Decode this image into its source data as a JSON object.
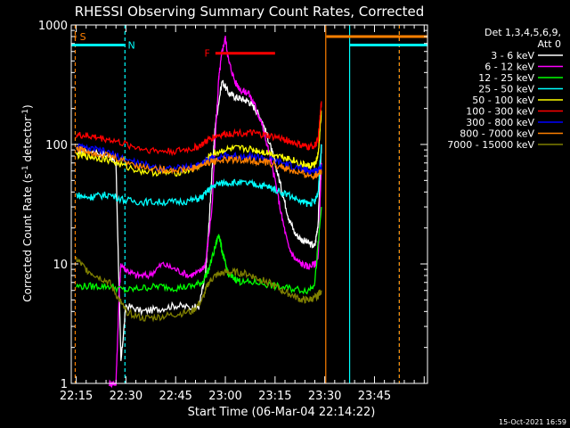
{
  "chart_data": {
    "type": "line",
    "title": "RHESSI Observing Summary Count Rates, Corrected",
    "xlabel": "Start Time (06-Mar-04 22:14:22)",
    "ylabel": "Corrected Count Rate (s",
    "ylabel_sup1": "-1",
    "ylabel_mid": " detector",
    "ylabel_sup2": "-1",
    "ylabel_end": ")",
    "yscale": "log",
    "ylim": [
      1,
      1000
    ],
    "xlim_minutes": [
      -1.5,
      106
    ],
    "x_ticks": [
      {
        "m": 0,
        "label": "22:15"
      },
      {
        "m": 15,
        "label": "22:30"
      },
      {
        "m": 30,
        "label": "22:45"
      },
      {
        "m": 45,
        "label": "23:00"
      },
      {
        "m": 60,
        "label": "23:15"
      },
      {
        "m": 75,
        "label": "23:30"
      },
      {
        "m": 90,
        "label": "23:45"
      }
    ],
    "y_ticks": [
      {
        "v": 1,
        "label": "1"
      },
      {
        "v": 10,
        "label": "10"
      },
      {
        "v": 100,
        "label": "100"
      },
      {
        "v": 1000,
        "label": "1000"
      }
    ],
    "legend_header": [
      "Det 1,3,4,5,6,9,",
      "Att 0"
    ],
    "legend_placement": "outside-right",
    "timestamp": "15-Oct-2021 16:59",
    "series": [
      {
        "name": "3 - 6 keV",
        "color": "#ffffff",
        "x": [
          0,
          5,
          10,
          12,
          13.5,
          15,
          20,
          25,
          30,
          35,
          37,
          39,
          40,
          41,
          42,
          44,
          46,
          48,
          50,
          52,
          54,
          56,
          58,
          60,
          62,
          64,
          66,
          68,
          70,
          72,
          73,
          74
        ],
        "y": [
          90,
          88,
          80,
          70,
          1.5,
          4.5,
          4,
          4.2,
          4.5,
          4.3,
          4.4,
          8,
          20,
          60,
          150,
          340,
          270,
          250,
          240,
          230,
          200,
          160,
          110,
          70,
          42,
          25,
          18,
          16,
          15,
          14,
          22,
          100
        ]
      },
      {
        "name": "6 - 12 keV",
        "color": "#ff00ff",
        "x": [
          10,
          12,
          13,
          13.5,
          15,
          18,
          22,
          26,
          30,
          34,
          37,
          39,
          41,
          42,
          43,
          44,
          45,
          46,
          48,
          50,
          52,
          54,
          56,
          58,
          60,
          62,
          64,
          66,
          68,
          70,
          72,
          73,
          74
        ],
        "y": [
          1,
          1,
          6,
          10,
          9,
          8,
          8,
          10,
          9,
          8,
          8.5,
          10,
          30,
          120,
          350,
          600,
          780,
          500,
          330,
          280,
          270,
          210,
          150,
          90,
          50,
          25,
          14,
          11,
          10,
          9.5,
          10,
          11,
          70
        ]
      },
      {
        "name": "12 - 25 keV",
        "color": "#00ff00",
        "x": [
          0,
          5,
          10,
          15,
          20,
          25,
          30,
          35,
          38,
          40,
          42,
          43,
          44,
          45,
          46,
          48,
          50,
          55,
          60,
          65,
          70,
          72,
          74
        ],
        "y": [
          6.5,
          6.5,
          6.5,
          6,
          6.3,
          6.5,
          6.3,
          6.5,
          7,
          9,
          14,
          18,
          13,
          10,
          8,
          7.5,
          7,
          7,
          6.5,
          6.2,
          6,
          7,
          30
        ]
      },
      {
        "name": "25 - 50 keV",
        "color": "#00ffff",
        "x": [
          0,
          3,
          6,
          10,
          15,
          20,
          25,
          30,
          35,
          38,
          40,
          42,
          45,
          48,
          52,
          55,
          58,
          60,
          64,
          68,
          70,
          72,
          73,
          74
        ],
        "y": [
          38,
          36,
          37,
          38,
          34,
          33,
          33,
          33,
          34,
          36,
          42,
          46,
          48,
          48,
          47,
          46,
          44,
          42,
          38,
          33,
          32,
          33,
          40,
          100
        ]
      },
      {
        "name": "50 - 100 keV",
        "color": "#ffff00",
        "x": [
          0,
          3,
          6,
          10,
          15,
          20,
          25,
          30,
          35,
          38,
          40,
          42,
          45,
          48,
          52,
          55,
          58,
          62,
          65,
          68,
          70,
          72,
          73,
          74
        ],
        "y": [
          82,
          80,
          78,
          74,
          65,
          60,
          58,
          58,
          62,
          68,
          78,
          85,
          90,
          92,
          92,
          88,
          85,
          80,
          75,
          68,
          66,
          68,
          80,
          190
        ]
      },
      {
        "name": "100 - 300 keV",
        "color": "#ff0000",
        "x": [
          0,
          3,
          6,
          10,
          15,
          20,
          25,
          30,
          35,
          38,
          40,
          42,
          45,
          48,
          52,
          55,
          58,
          62,
          65,
          68,
          70,
          72,
          73,
          74
        ],
        "y": [
          120,
          118,
          115,
          110,
          100,
          92,
          88,
          88,
          92,
          100,
          110,
          118,
          122,
          125,
          125,
          122,
          118,
          112,
          105,
          98,
          95,
          98,
          110,
          230
        ]
      },
      {
        "name": "300 - 800 keV",
        "color": "#0000ff",
        "x": [
          0,
          3,
          6,
          10,
          15,
          20,
          25,
          30,
          35,
          38,
          40,
          42,
          45,
          48,
          52,
          55,
          58,
          62,
          65,
          68,
          70,
          72,
          73,
          74
        ],
        "y": [
          97,
          92,
          90,
          85,
          75,
          68,
          64,
          63,
          65,
          70,
          75,
          78,
          80,
          80,
          80,
          78,
          75,
          70,
          66,
          62,
          60,
          60,
          62,
          65
        ]
      },
      {
        "name": "800 - 7000 keV",
        "color": "#ff8000",
        "x": [
          0,
          3,
          6,
          10,
          15,
          20,
          25,
          30,
          35,
          38,
          40,
          42,
          45,
          48,
          52,
          55,
          58,
          62,
          65,
          68,
          70,
          72,
          73,
          74
        ],
        "y": [
          94,
          88,
          85,
          80,
          72,
          65,
          62,
          61,
          63,
          67,
          71,
          73,
          74,
          75,
          74,
          72,
          70,
          65,
          60,
          57,
          55,
          55,
          57,
          60
        ]
      },
      {
        "name": "7000 - 15000 keV",
        "color": "#808000",
        "x": [
          0,
          3,
          6,
          10,
          13,
          15,
          20,
          25,
          30,
          35,
          38,
          40,
          42,
          45,
          48,
          52,
          55,
          58,
          62,
          65,
          68,
          70,
          72,
          73,
          74
        ],
        "y": [
          11,
          9,
          8,
          7,
          5,
          4,
          3.5,
          3.6,
          3.8,
          4,
          5,
          7,
          8,
          8.5,
          8.5,
          8.2,
          7.5,
          7,
          6,
          5.5,
          5,
          5,
          5.2,
          5.5,
          6
        ]
      }
    ],
    "bars": [
      {
        "label": "S",
        "color": "#ff8000",
        "x0": -0.5,
        "x1": 0,
        "y": 800
      },
      {
        "label": "N",
        "color": "#00ffff",
        "x0": -1.5,
        "x1": 14.5,
        "y": 680
      },
      {
        "label": "F",
        "color": "#ff0000",
        "x0": 42,
        "x1": 60,
        "y": 580
      },
      {
        "label": "",
        "color": "#ff8000",
        "x0": 75.5,
        "x1": 106,
        "y": 800
      },
      {
        "label": "",
        "color": "#00ffff",
        "x0": 82.5,
        "x1": 106,
        "y": 680
      }
    ],
    "vlines": [
      {
        "x": -0.3,
        "color": "#ff8000",
        "style": "dashed"
      },
      {
        "x": 14.7,
        "color": "#00ffff",
        "style": "dashed"
      },
      {
        "x": 75.3,
        "color": "#ff8000",
        "style": "solid"
      },
      {
        "x": 82.5,
        "color": "#00ffff",
        "style": "solid"
      },
      {
        "x": 97.5,
        "color": "#00ffff",
        "style": "dashed"
      },
      {
        "x": 97.5,
        "color": "#ff8000",
        "style": "dashed"
      }
    ]
  }
}
